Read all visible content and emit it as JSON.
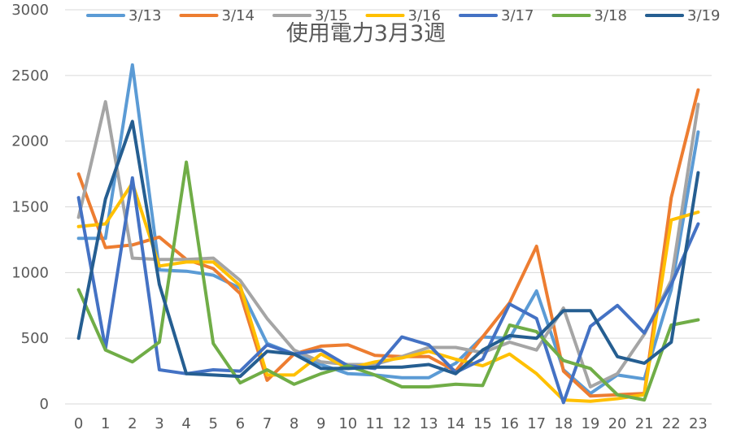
{
  "chart_data": {
    "type": "line",
    "title": "使用電力3月3週",
    "xlabel": "",
    "ylabel": "",
    "ylim": [
      0,
      3000
    ],
    "yticks": [
      0,
      500,
      1000,
      1500,
      2000,
      2500,
      3000
    ],
    "x": [
      "0",
      "1",
      "2",
      "3",
      "4",
      "5",
      "6",
      "7",
      "8",
      "9",
      "10",
      "11",
      "12",
      "13",
      "14",
      "15",
      "16",
      "17",
      "18",
      "19",
      "20",
      "21",
      "22",
      "23"
    ],
    "grid": true,
    "legend": "top",
    "series": [
      {
        "name": "3/13",
        "color": "#5b9bd5",
        "values": [
          1260,
          1260,
          2580,
          1020,
          1010,
          980,
          880,
          460,
          380,
          300,
          230,
          220,
          200,
          200,
          310,
          510,
          500,
          860,
          260,
          80,
          220,
          190,
          870,
          2070
        ]
      },
      {
        "name": "3/14",
        "color": "#ed7d31",
        "values": [
          1750,
          1190,
          1210,
          1270,
          1100,
          1030,
          840,
          180,
          380,
          440,
          450,
          370,
          360,
          360,
          250,
          510,
          770,
          1200,
          250,
          60,
          70,
          80,
          1570,
          2390
        ]
      },
      {
        "name": "3/15",
        "color": "#a5a5a5",
        "values": [
          1420,
          2300,
          1110,
          1100,
          1100,
          1110,
          940,
          650,
          410,
          320,
          300,
          300,
          360,
          430,
          430,
          390,
          470,
          410,
          730,
          130,
          230,
          530,
          940,
          2280
        ]
      },
      {
        "name": "3/16",
        "color": "#ffc000",
        "values": [
          1350,
          1370,
          1680,
          1050,
          1080,
          1080,
          900,
          220,
          220,
          380,
          270,
          320,
          350,
          400,
          340,
          290,
          380,
          230,
          30,
          20,
          40,
          70,
          1400,
          1460
        ]
      },
      {
        "name": "3/17",
        "color": "#4472c4",
        "values": [
          1570,
          420,
          1720,
          260,
          230,
          260,
          250,
          450,
          380,
          410,
          290,
          270,
          510,
          450,
          240,
          340,
          760,
          650,
          10,
          590,
          750,
          540,
          910,
          1370
        ]
      },
      {
        "name": "3/18",
        "color": "#70ad47",
        "values": [
          870,
          410,
          320,
          470,
          1840,
          460,
          160,
          260,
          150,
          230,
          290,
          220,
          130,
          130,
          150,
          140,
          600,
          550,
          330,
          270,
          70,
          30,
          600,
          640
        ]
      },
      {
        "name": "3/19",
        "color": "#255e91",
        "values": [
          500,
          1560,
          2150,
          910,
          230,
          220,
          210,
          400,
          380,
          270,
          270,
          280,
          280,
          300,
          230,
          410,
          520,
          500,
          710,
          710,
          360,
          310,
          470,
          1760
        ]
      }
    ]
  }
}
